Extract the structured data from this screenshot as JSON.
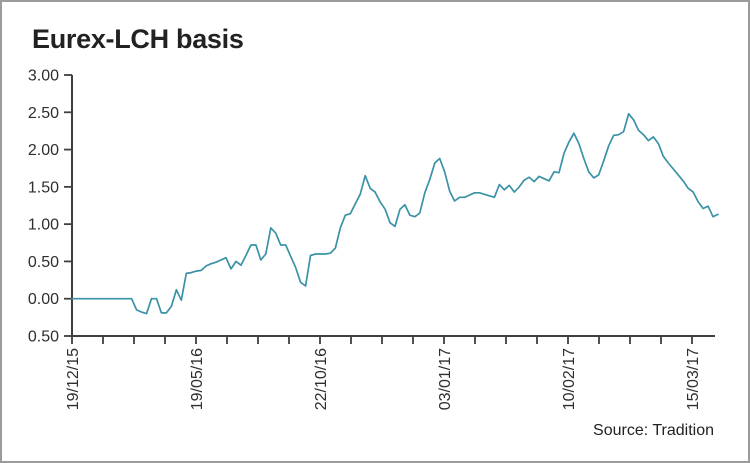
{
  "window": {
    "background": "#ffffff",
    "border_color": "#9b9b9b"
  },
  "title": "Eurex-LCH basis",
  "source_note": "Source: Tradition",
  "chart_data": {
    "type": "line",
    "title": "Eurex-LCH basis",
    "source": "Source: Tradition",
    "grid": false,
    "legend": false,
    "y_axis": {
      "min": -0.5,
      "max": 3.0,
      "step": 0.5,
      "tick_labels": [
        "3.00",
        "2.50",
        "2.00",
        "1.50",
        "1.00",
        "0.50",
        "0.00",
        "0.50"
      ]
    },
    "x_axis": {
      "tick_count": 21,
      "label_rotation_deg": -90,
      "labeled_ticks": [
        {
          "index": 0,
          "label": "19/12/15"
        },
        {
          "index": 4,
          "label": "19/05/16"
        },
        {
          "index": 8,
          "label": "22/10/16"
        },
        {
          "index": 12,
          "label": "03/01/17"
        },
        {
          "index": 16,
          "label": "10/02/17"
        },
        {
          "index": 20,
          "label": "15/03/17"
        }
      ]
    },
    "series": [
      {
        "name": "Eurex-LCH basis",
        "color": "#3a92a6",
        "values": [
          0.0,
          0.0,
          0.0,
          0.0,
          0.0,
          0.0,
          0.0,
          0.0,
          0.0,
          0.0,
          0.0,
          0.0,
          0.0,
          -0.15,
          -0.18,
          -0.2,
          0.0,
          0.0,
          -0.19,
          -0.19,
          -0.1,
          0.12,
          -0.02,
          0.34,
          0.35,
          0.37,
          0.38,
          0.44,
          0.47,
          0.49,
          0.52,
          0.55,
          0.4,
          0.5,
          0.45,
          0.58,
          0.72,
          0.72,
          0.52,
          0.6,
          0.95,
          0.88,
          0.72,
          0.72,
          0.57,
          0.42,
          0.22,
          0.17,
          0.58,
          0.6,
          0.6,
          0.6,
          0.61,
          0.68,
          0.95,
          1.12,
          1.14,
          1.27,
          1.4,
          1.65,
          1.48,
          1.43,
          1.3,
          1.2,
          1.02,
          0.97,
          1.2,
          1.26,
          1.12,
          1.1,
          1.15,
          1.42,
          1.6,
          1.82,
          1.88,
          1.7,
          1.44,
          1.31,
          1.36,
          1.36,
          1.39,
          1.42,
          1.42,
          1.4,
          1.38,
          1.36,
          1.53,
          1.46,
          1.52,
          1.43,
          1.5,
          1.59,
          1.63,
          1.57,
          1.64,
          1.61,
          1.58,
          1.7,
          1.69,
          1.95,
          2.1,
          2.22,
          2.08,
          1.88,
          1.7,
          1.62,
          1.66,
          1.85,
          2.05,
          2.19,
          2.2,
          2.24,
          2.48,
          2.4,
          2.26,
          2.2,
          2.12,
          2.17,
          2.08,
          1.91,
          1.82,
          1.74,
          1.66,
          1.58,
          1.48,
          1.43,
          1.3,
          1.21,
          1.24,
          1.1,
          1.13
        ]
      }
    ]
  }
}
